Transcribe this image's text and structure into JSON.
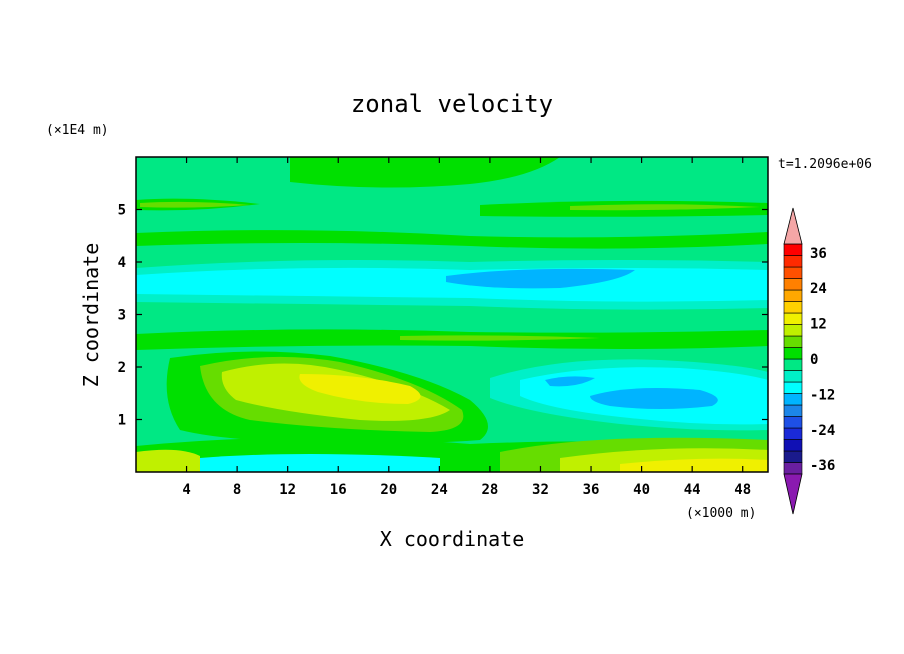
{
  "chart_data": {
    "type": "heatmap",
    "title": "zonal velocity",
    "xlabel": "X coordinate",
    "ylabel": "Z coordinate",
    "x_scale_label": "(×1000 m)",
    "y_scale_label": "(×1E4 m)",
    "time_label": "t=1.2096e+06",
    "xlim": [
      0,
      50
    ],
    "ylim": [
      0,
      6
    ],
    "x_ticks": [
      4,
      8,
      12,
      16,
      20,
      24,
      28,
      32,
      36,
      40,
      44,
      48
    ],
    "y_ticks": [
      1,
      2,
      3,
      4,
      5
    ],
    "colorbar": {
      "levels": [
        -42,
        -39,
        -36,
        -33,
        -30,
        -27,
        -24,
        -21,
        -18,
        -15,
        -12,
        -9,
        -6,
        -3,
        0,
        3,
        6,
        9,
        12,
        15,
        18,
        21,
        24,
        27,
        30,
        33,
        36,
        39,
        42
      ],
      "colors": [
        "#6a1fa0",
        "#1a1a8c",
        "#1010b4",
        "#1a2ad8",
        "#1e50e6",
        "#1c86e8",
        "#00b4ff",
        "#00ffff",
        "#00f0c8",
        "#00e884",
        "#00e000",
        "#66dd00",
        "#c0f000",
        "#f0f000",
        "#ffd000",
        "#ffa800",
        "#ff8000",
        "#ff5000",
        "#ff2a00",
        "#ff0000"
      ],
      "tick_labels": [
        "36",
        "24",
        "12",
        "0",
        "-12",
        "-24",
        "-36"
      ],
      "tick_values": [
        36,
        24,
        12,
        0,
        -12,
        -24,
        -36
      ],
      "over_color": "#f4a6a6",
      "under_color": "#8a1ab0"
    },
    "features": [
      {
        "value": 10,
        "x_range": [
          12,
          24
        ],
        "z_range": [
          1.2,
          1.9
        ]
      },
      {
        "value": 14,
        "x_range": [
          17,
          22
        ],
        "z_range": [
          1.45,
          1.75
        ]
      },
      {
        "value": -14,
        "x_range": [
          37,
          45
        ],
        "z_range": [
          1.3,
          1.6
        ]
      },
      {
        "value": -14,
        "x_range": [
          28,
          36
        ],
        "z_range": [
          3.6,
          3.85
        ]
      },
      {
        "value": 9,
        "x_range": [
          38,
          50
        ],
        "z_range": [
          0,
          0.4
        ]
      },
      {
        "value": 8,
        "x_range": [
          0,
          10
        ],
        "z_range": [
          5.0,
          5.15
        ]
      }
    ]
  }
}
